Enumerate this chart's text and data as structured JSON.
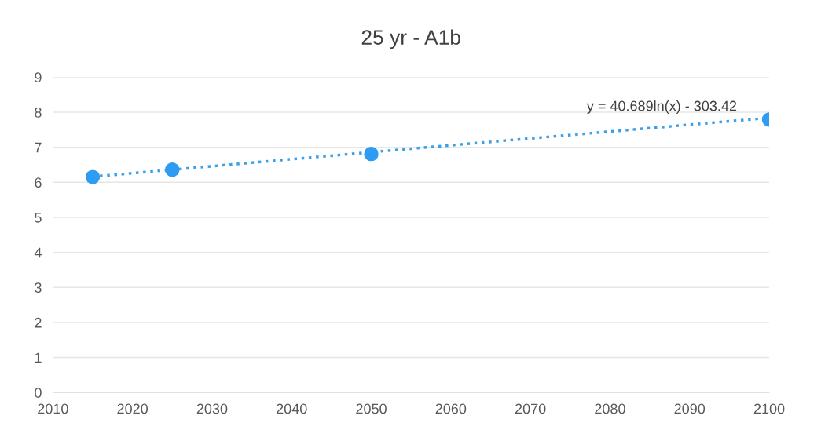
{
  "chart_data": {
    "type": "scatter",
    "title": "25 yr - A1b",
    "series": [
      {
        "color": "#2e9cf2",
        "x": [
          2015,
          2025,
          2050,
          2100
        ],
        "values": [
          6.15,
          6.36,
          6.81,
          7.79
        ],
        "marker": "circle"
      },
      {
        "type": "line",
        "color": "#3aa0e8",
        "x": [
          2015,
          2050,
          2100
        ],
        "values": [
          6.16,
          6.86,
          7.84
        ],
        "line_style": "dotted",
        "marker": "none"
      }
    ],
    "annotations": [
      "y = 40.689ln(x) - 303.42"
    ],
    "xlim": [
      2010,
      2100
    ],
    "xticks": [
      2010,
      2020,
      2030,
      2040,
      2050,
      2060,
      2070,
      2080,
      2090,
      2100
    ],
    "ylim": [
      0,
      9
    ],
    "yticks": [
      0,
      1,
      2,
      3,
      4,
      5,
      6,
      7,
      8,
      9
    ],
    "grid": "y",
    "legend": false
  }
}
